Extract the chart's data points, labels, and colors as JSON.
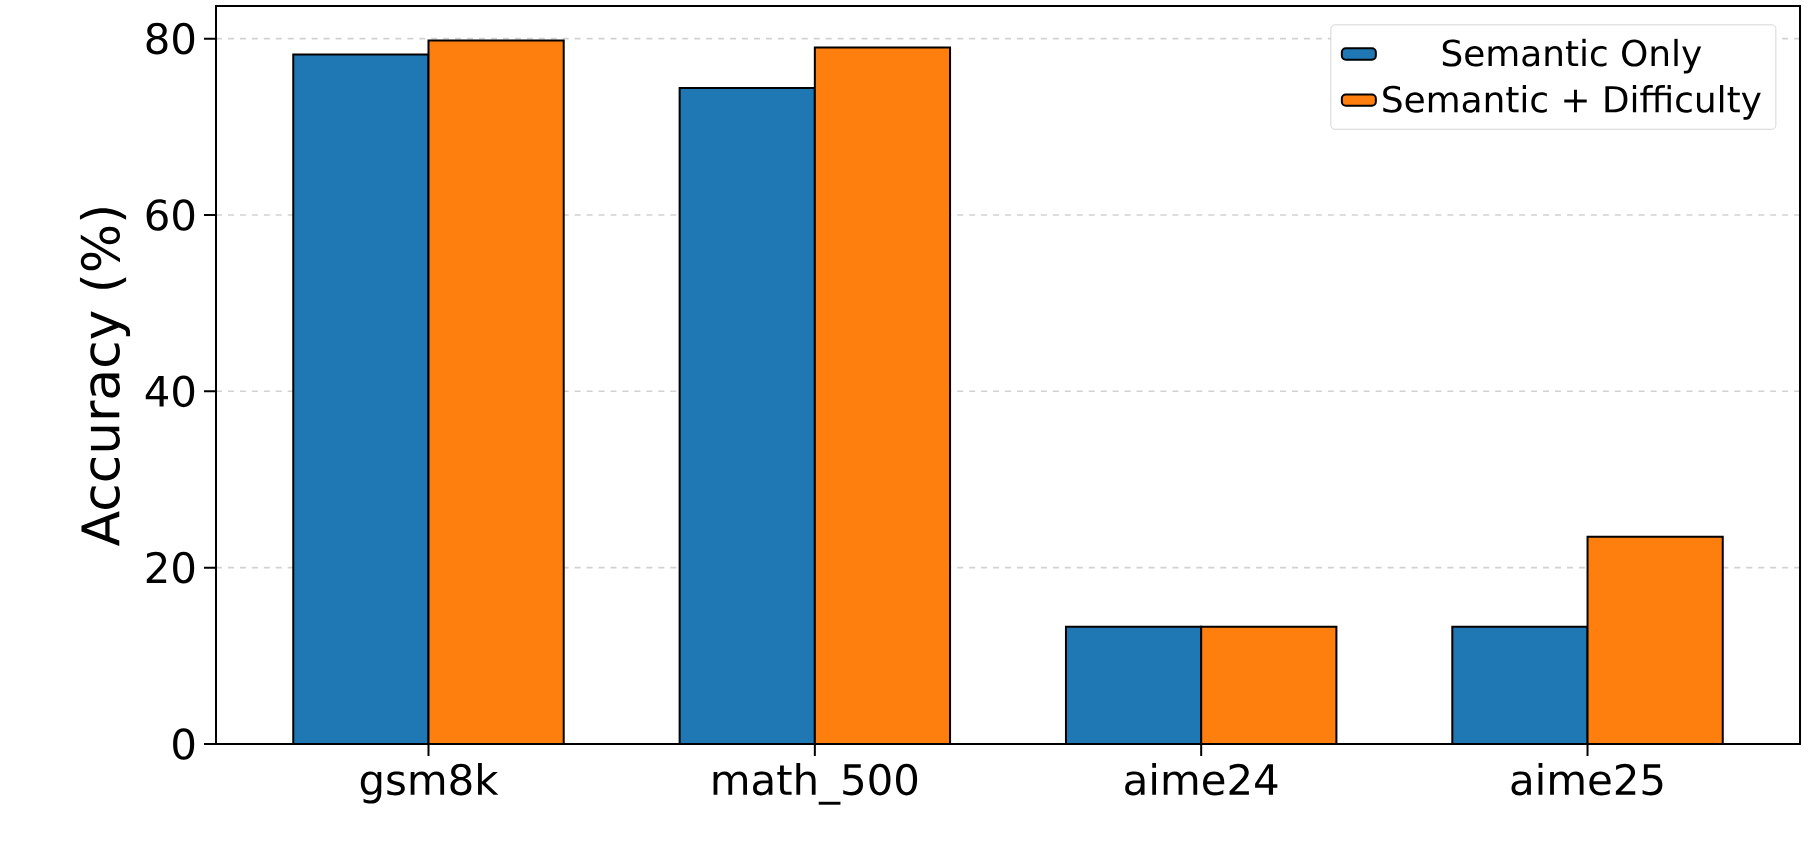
{
  "chart_data": {
    "type": "bar",
    "ylabel": "Accuracy (%)",
    "categories": [
      "gsm8k",
      "math_500",
      "aime24",
      "aime25"
    ],
    "series": [
      {
        "name": "Semantic Only",
        "color": "#1f77b4",
        "values": [
          78.2,
          74.4,
          13.3,
          13.3
        ]
      },
      {
        "name": "Semantic + Difficulty",
        "color": "#ff7f0e",
        "values": [
          79.8,
          79.0,
          13.3,
          23.5
        ]
      }
    ],
    "ylim": [
      0,
      83.7
    ],
    "yticks": [
      0,
      20,
      40,
      60,
      80
    ],
    "grid": "y",
    "legend": "top right"
  }
}
